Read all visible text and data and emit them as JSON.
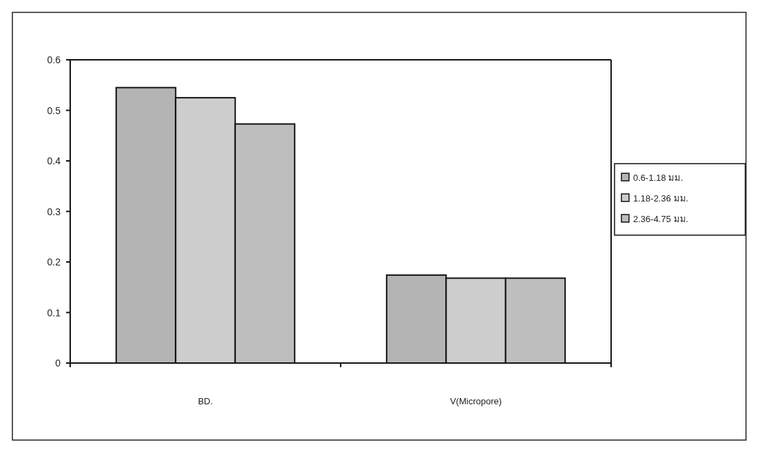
{
  "chart_data": {
    "type": "bar",
    "categories": [
      "BD.",
      "V(Micropore)"
    ],
    "series": [
      {
        "name": "0.6-1.18 มม.",
        "color": "#b4b4b4",
        "values": [
          0.545,
          0.174
        ]
      },
      {
        "name": "1.18-2.36 มม.",
        "color": "#cdcdcd",
        "values": [
          0.525,
          0.168
        ]
      },
      {
        "name": "2.36-4.75 มม.",
        "color": "#bebebe",
        "values": [
          0.473,
          0.168
        ]
      }
    ],
    "ylim": [
      0,
      0.6
    ],
    "yticks": [
      0,
      0.1,
      0.2,
      0.3,
      0.4,
      0.5,
      0.6
    ],
    "grid": false,
    "legend": "right"
  }
}
